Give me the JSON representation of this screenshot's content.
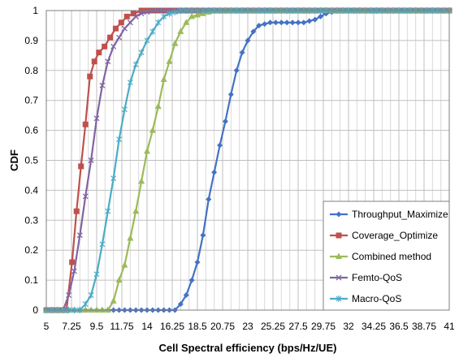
{
  "chart_data": {
    "type": "line",
    "xlabel": "Cell Spectral efficiency (bps/Hz/UE)",
    "ylabel": "CDF",
    "xlim": [
      5,
      41
    ],
    "ylim": [
      0,
      1
    ],
    "grid": true,
    "legend_position": "bottom-right",
    "x_ticks": [
      "5",
      "7.25",
      "9.5",
      "11.75",
      "14",
      "16.25",
      "18.5",
      "20.75",
      "23",
      "25.25",
      "27.5",
      "29.75",
      "32",
      "34.25",
      "36.5",
      "38.75",
      "41"
    ],
    "y_ticks": [
      "0",
      "0.1",
      "0.2",
      "0.3",
      "0.4",
      "0.5",
      "0.6",
      "0.7",
      "0.8",
      "0.9",
      "1"
    ],
    "series": [
      {
        "name": "Throughput_Maximize",
        "color": "#4472c4",
        "marker": "diamond",
        "points": [
          [
            5,
            0
          ],
          [
            8,
            0
          ],
          [
            10,
            0
          ],
          [
            12,
            0
          ],
          [
            14,
            0
          ],
          [
            15.5,
            0
          ],
          [
            16.5,
            0
          ],
          [
            17,
            0.02
          ],
          [
            17.5,
            0.05
          ],
          [
            18,
            0.1
          ],
          [
            18.5,
            0.16
          ],
          [
            19,
            0.25
          ],
          [
            19.5,
            0.37
          ],
          [
            20,
            0.46
          ],
          [
            20.5,
            0.55
          ],
          [
            21,
            0.63
          ],
          [
            21.5,
            0.72
          ],
          [
            22,
            0.8
          ],
          [
            22.5,
            0.86
          ],
          [
            23,
            0.9
          ],
          [
            23.5,
            0.93
          ],
          [
            24,
            0.95
          ],
          [
            25,
            0.96
          ],
          [
            26,
            0.96
          ],
          [
            27,
            0.96
          ],
          [
            28,
            0.96
          ],
          [
            29,
            0.97
          ],
          [
            30,
            0.99
          ],
          [
            31,
            1
          ],
          [
            33,
            1
          ],
          [
            36,
            1
          ],
          [
            39,
            1
          ],
          [
            41,
            1
          ]
        ]
      },
      {
        "name": "Coverage_Optimize",
        "color": "#c0504d",
        "marker": "square",
        "points": [
          [
            5,
            0
          ],
          [
            6,
            0
          ],
          [
            6.8,
            0
          ],
          [
            7.3,
            0.16
          ],
          [
            7.7,
            0.33
          ],
          [
            8.1,
            0.48
          ],
          [
            8.5,
            0.62
          ],
          [
            8.9,
            0.78
          ],
          [
            9.3,
            0.83
          ],
          [
            9.7,
            0.86
          ],
          [
            10.2,
            0.88
          ],
          [
            10.7,
            0.91
          ],
          [
            11.2,
            0.94
          ],
          [
            11.7,
            0.96
          ],
          [
            12.2,
            0.98
          ],
          [
            12.8,
            0.99
          ],
          [
            13.5,
            1
          ],
          [
            15,
            1
          ],
          [
            20,
            1
          ],
          [
            25,
            1
          ],
          [
            30,
            1
          ],
          [
            35,
            1
          ],
          [
            41,
            1
          ]
        ]
      },
      {
        "name": "Combined method",
        "color": "#9bbb59",
        "marker": "triangle",
        "points": [
          [
            5,
            0
          ],
          [
            8,
            0
          ],
          [
            10,
            0
          ],
          [
            10.5,
            0
          ],
          [
            11,
            0.03
          ],
          [
            11.5,
            0.1
          ],
          [
            12,
            0.15
          ],
          [
            12.5,
            0.24
          ],
          [
            13,
            0.33
          ],
          [
            13.5,
            0.43
          ],
          [
            14,
            0.53
          ],
          [
            14.5,
            0.6
          ],
          [
            15,
            0.68
          ],
          [
            15.5,
            0.77
          ],
          [
            16,
            0.83
          ],
          [
            16.5,
            0.89
          ],
          [
            17,
            0.93
          ],
          [
            17.5,
            0.96
          ],
          [
            18,
            0.98
          ],
          [
            19,
            0.99
          ],
          [
            20,
            1
          ],
          [
            22,
            1
          ],
          [
            25,
            1
          ],
          [
            30,
            1
          ],
          [
            35,
            1
          ],
          [
            41,
            1
          ]
        ]
      },
      {
        "name": "Femto-QoS",
        "color": "#8064a2",
        "marker": "x",
        "points": [
          [
            5,
            0
          ],
          [
            6.5,
            0
          ],
          [
            7,
            0.05
          ],
          [
            7.5,
            0.13
          ],
          [
            8,
            0.25
          ],
          [
            8.5,
            0.38
          ],
          [
            9,
            0.5
          ],
          [
            9.5,
            0.64
          ],
          [
            10,
            0.75
          ],
          [
            10.5,
            0.83
          ],
          [
            11,
            0.88
          ],
          [
            11.5,
            0.91
          ],
          [
            12,
            0.94
          ],
          [
            12.5,
            0.96
          ],
          [
            13,
            0.98
          ],
          [
            13.5,
            0.99
          ],
          [
            14.5,
            1
          ],
          [
            16,
            1
          ],
          [
            20,
            1
          ],
          [
            25,
            1
          ],
          [
            30,
            1
          ],
          [
            35,
            1
          ],
          [
            41,
            1
          ]
        ]
      },
      {
        "name": "Macro-QoS",
        "color": "#4bacc6",
        "marker": "star",
        "points": [
          [
            5,
            0
          ],
          [
            7,
            0
          ],
          [
            8,
            0
          ],
          [
            8.5,
            0.02
          ],
          [
            9,
            0.05
          ],
          [
            9.5,
            0.12
          ],
          [
            10,
            0.22
          ],
          [
            10.5,
            0.33
          ],
          [
            11,
            0.44
          ],
          [
            11.5,
            0.57
          ],
          [
            12,
            0.67
          ],
          [
            12.5,
            0.76
          ],
          [
            13,
            0.82
          ],
          [
            13.5,
            0.86
          ],
          [
            14,
            0.9
          ],
          [
            14.5,
            0.93
          ],
          [
            15,
            0.96
          ],
          [
            15.5,
            0.98
          ],
          [
            16,
            0.99
          ],
          [
            17,
            1
          ],
          [
            20,
            1
          ],
          [
            25,
            1
          ],
          [
            30,
            1
          ],
          [
            35,
            1
          ],
          [
            41,
            1
          ]
        ]
      }
    ]
  }
}
